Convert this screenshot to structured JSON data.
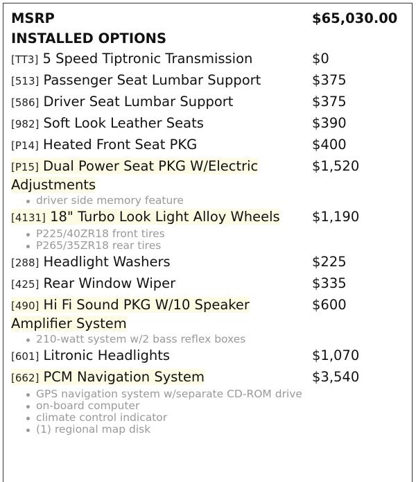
{
  "header": {
    "msrp_label": "MSRP",
    "msrp_value": "$65,030.00",
    "section_title": "INSTALLED OPTIONS"
  },
  "colors": {
    "highlight": "#fdfbe3",
    "note_text": "#999999"
  },
  "options": [
    {
      "code": "[TT3]",
      "name": "5 Speed Tiptronic Transmission",
      "price": "$0",
      "highlighted": false,
      "notes": []
    },
    {
      "code": "[513]",
      "name": "Passenger Seat Lumbar Support",
      "price": "$375",
      "highlighted": false,
      "notes": []
    },
    {
      "code": "[586]",
      "name": "Driver Seat Lumbar Support",
      "price": "$375",
      "highlighted": false,
      "notes": []
    },
    {
      "code": "[982]",
      "name": "Soft Look Leather Seats",
      "price": "$390",
      "highlighted": false,
      "notes": []
    },
    {
      "code": "[P14]",
      "name": "Heated Front Seat PKG",
      "price": "$400",
      "highlighted": false,
      "notes": []
    },
    {
      "code": "[P15]",
      "name": "Dual Power Seat PKG W/Electric Adjustments",
      "price": "$1,520",
      "highlighted": true,
      "notes": [
        "driver side memory feature"
      ]
    },
    {
      "code": "[4131]",
      "name": "18\" Turbo Look Light Alloy Wheels",
      "price": "$1,190",
      "highlighted": true,
      "notes": [
        "P225/40ZR18 front tires",
        "P265/35ZR18 rear tires"
      ]
    },
    {
      "code": "[288]",
      "name": "Headlight Washers",
      "price": "$225",
      "highlighted": false,
      "notes": []
    },
    {
      "code": "[425]",
      "name": "Rear Window Wiper",
      "price": "$335",
      "highlighted": false,
      "notes": []
    },
    {
      "code": "[490]",
      "name": "Hi Fi Sound PKG W/10 Speaker Amplifier System",
      "price": "$600",
      "highlighted": true,
      "notes": [
        "210-watt system w/2 bass reflex boxes"
      ]
    },
    {
      "code": "[601]",
      "name": "Litronic Headlights",
      "price": "$1,070",
      "highlighted": false,
      "notes": []
    },
    {
      "code": "[662]",
      "name": "PCM Navigation System",
      "price": "$3,540",
      "highlighted": true,
      "notes": [
        "GPS navigation system w/separate CD-ROM drive",
        "on-board computer",
        "climate control indicator",
        "(1) regional map disk"
      ]
    }
  ]
}
